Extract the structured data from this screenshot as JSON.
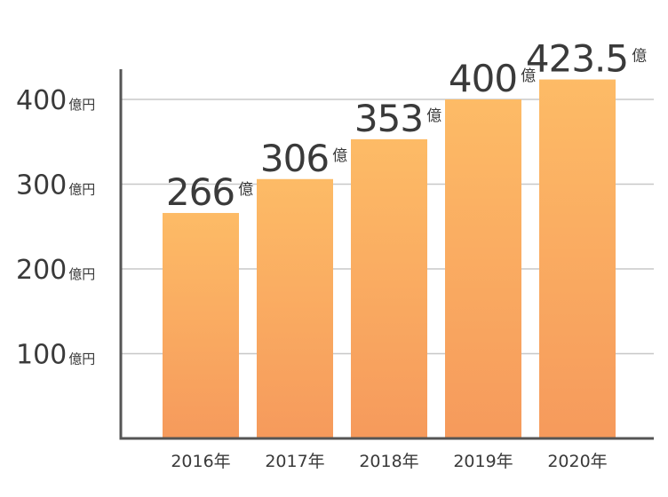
{
  "chart_data": {
    "type": "bar",
    "categories": [
      "2016年",
      "2017年",
      "2018年",
      "2019年",
      "2020年"
    ],
    "values": [
      266,
      306,
      353,
      400,
      423.5
    ],
    "data_labels": [
      "266",
      "306",
      "353",
      "400",
      "423.5"
    ],
    "data_label_unit": "億",
    "yticks": [
      {
        "value": 100,
        "label": "100",
        "unit": "億円"
      },
      {
        "value": 200,
        "label": "200",
        "unit": "億円"
      },
      {
        "value": 300,
        "label": "300",
        "unit": "億円"
      },
      {
        "value": 400,
        "label": "400",
        "unit": "億円"
      }
    ],
    "ylim": [
      0,
      430
    ],
    "grid": true,
    "bar_color_top": "#fdbb66",
    "bar_color_bottom": "#f69a5c",
    "axis_color": "#555555",
    "grid_color": "#c8c8c8",
    "title": "",
    "xlabel": "",
    "ylabel": ""
  }
}
